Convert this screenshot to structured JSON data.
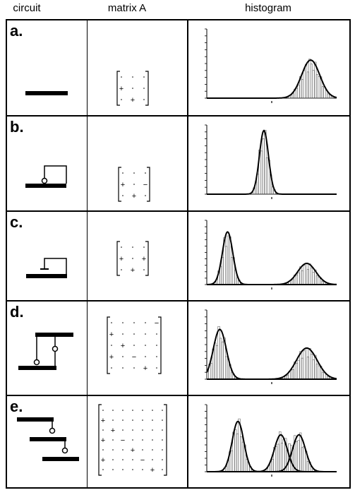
{
  "headers": {
    "circuit": "circuit",
    "matrix": "matrix A",
    "histogram": "histogram"
  },
  "rows": [
    {
      "label": "a.",
      "matrix": {
        "size": 3,
        "entries": [
          [
            "",
            "",
            ""
          ],
          [
            "+",
            "",
            ""
          ],
          [
            "",
            "+",
            ""
          ]
        ]
      }
    },
    {
      "label": "b.",
      "matrix": {
        "size": 3,
        "entries": [
          [
            "",
            "",
            ""
          ],
          [
            "+",
            "",
            "−"
          ],
          [
            "",
            "+",
            ""
          ]
        ]
      }
    },
    {
      "label": "c.",
      "matrix": {
        "size": 3,
        "entries": [
          [
            "",
            "",
            ""
          ],
          [
            "+",
            "",
            "+"
          ],
          [
            "",
            "+",
            ""
          ]
        ]
      }
    },
    {
      "label": "d.",
      "matrix": {
        "size": 5,
        "entries": [
          [
            "",
            "",
            "",
            "",
            "−"
          ],
          [
            "+",
            "",
            "",
            "",
            ""
          ],
          [
            "",
            "+",
            "",
            "",
            ""
          ],
          [
            "+",
            "",
            "−",
            "",
            ""
          ],
          [
            "",
            "",
            "",
            "+",
            ""
          ]
        ]
      }
    },
    {
      "label": "e.",
      "matrix": {
        "size": 7,
        "entries": [
          [
            "",
            "",
            "",
            "",
            "",
            "",
            ""
          ],
          [
            "+",
            "",
            "",
            "",
            "",
            "",
            ""
          ],
          [
            "",
            "+",
            "",
            "",
            "",
            "",
            ""
          ],
          [
            "+",
            "",
            "−",
            "",
            "",
            "",
            ""
          ],
          [
            "",
            "",
            "",
            "+",
            "",
            "",
            ""
          ],
          [
            "+",
            "",
            "",
            "",
            "−",
            "",
            ""
          ],
          [
            "",
            "",
            "",
            "",
            "",
            "+",
            ""
          ]
        ]
      }
    }
  ],
  "histograms": [
    {
      "peaks": [
        {
          "mu": 0.8,
          "sigma": 0.07,
          "amp": 0.55
        }
      ]
    },
    {
      "peaks": [
        {
          "mu": 0.44,
          "sigma": 0.035,
          "amp": 0.92
        }
      ]
    },
    {
      "peaks": [
        {
          "mu": 0.16,
          "sigma": 0.04,
          "amp": 0.82
        },
        {
          "mu": 0.77,
          "sigma": 0.07,
          "amp": 0.33
        }
      ]
    },
    {
      "peaks": [
        {
          "mu": 0.1,
          "sigma": 0.05,
          "amp": 0.72
        },
        {
          "mu": 0.77,
          "sigma": 0.08,
          "amp": 0.45
        }
      ]
    },
    {
      "peaks": [
        {
          "mu": 0.24,
          "sigma": 0.045,
          "amp": 0.75
        },
        {
          "mu": 0.57,
          "sigma": 0.05,
          "amp": 0.55
        },
        {
          "mu": 0.71,
          "sigma": 0.05,
          "amp": 0.55
        }
      ]
    }
  ]
}
